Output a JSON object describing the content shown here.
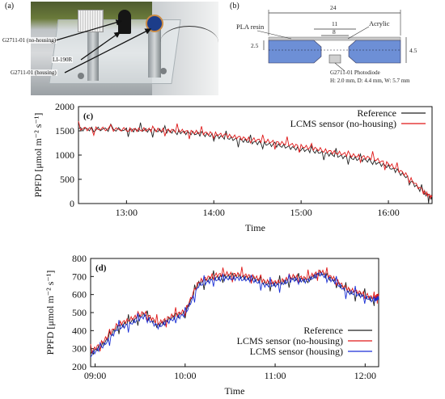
{
  "panel_a": {
    "label": "(a)",
    "annotations": [
      "G2711-01 (no-housing)",
      "LI-190R",
      "G2711-01 (housing)"
    ]
  },
  "panel_b": {
    "label": "(b)",
    "dim_total": "24",
    "dim_inner": "11",
    "dim_window": "8",
    "dim_left": "2.5",
    "dim_right": "4.5",
    "material_resin": "PLA resin",
    "material_cover": "Acrylic",
    "sensor_name": "G2711-01 Photodiode",
    "sensor_dims": "H: 2.0 mm, D: 4.4 mm, W: 5.7 mm",
    "colors": {
      "resin": "#6d8fd6",
      "cover": "#c9c9c9"
    }
  },
  "chart_data": [
    {
      "type": "line",
      "panel_label": "(c)",
      "xlabel": "Time",
      "ylabel": "PPFD [μmol m⁻² s⁻¹]",
      "ylim": [
        0,
        2000
      ],
      "yticks": [
        "0",
        "500",
        "1000",
        "1500",
        "2000"
      ],
      "xticks": [
        "13:00",
        "14:00",
        "15:00",
        "16:00"
      ],
      "xtick_hours": [
        13,
        14,
        15,
        16
      ],
      "xlim_hours": [
        12.45,
        16.5
      ],
      "legend": "top-right",
      "series": [
        {
          "name": "Reference",
          "color": "#222222",
          "x": [
            12.45,
            12.7,
            13.0,
            13.2,
            13.4,
            13.6,
            13.8,
            14.0,
            14.2,
            14.4,
            14.6,
            14.8,
            15.0,
            15.2,
            15.4,
            15.6,
            15.8,
            16.0,
            16.2,
            16.4,
            16.5
          ],
          "y": [
            1540,
            1535,
            1520,
            1515,
            1500,
            1480,
            1440,
            1400,
            1340,
            1280,
            1230,
            1180,
            1120,
            1060,
            990,
            930,
            880,
            760,
            560,
            220,
            120
          ]
        },
        {
          "name": "LCMS sensor (no-housing)",
          "color": "#e01818",
          "x": [
            12.45,
            12.7,
            13.0,
            13.2,
            13.4,
            13.6,
            13.8,
            14.0,
            14.2,
            14.4,
            14.6,
            14.8,
            15.0,
            15.2,
            15.4,
            15.6,
            15.8,
            16.0,
            16.2,
            16.4,
            16.5
          ],
          "y": [
            1545,
            1540,
            1525,
            1525,
            1515,
            1500,
            1470,
            1440,
            1385,
            1330,
            1290,
            1240,
            1180,
            1120,
            1050,
            990,
            940,
            820,
            600,
            240,
            130
          ]
        }
      ]
    },
    {
      "type": "line",
      "panel_label": "(d)",
      "xlabel": "Time",
      "ylabel": "PPFD [μmol m⁻² s⁻¹]",
      "ylim": [
        200,
        800
      ],
      "yticks": [
        "200",
        "300",
        "400",
        "500",
        "600",
        "700",
        "800"
      ],
      "xticks": [
        "09:00",
        "10:00",
        "11:00",
        "12:00"
      ],
      "xtick_hours": [
        9,
        10,
        11,
        12
      ],
      "xlim_hours": [
        8.95,
        12.15
      ],
      "legend": "bottom-right",
      "series": [
        {
          "name": "Reference",
          "color": "#222222",
          "x": [
            8.95,
            9.1,
            9.25,
            9.4,
            9.55,
            9.7,
            9.85,
            10.0,
            10.15,
            10.3,
            10.45,
            10.6,
            10.75,
            10.9,
            11.05,
            11.2,
            11.35,
            11.5,
            11.65,
            11.8,
            11.95,
            12.1,
            12.15
          ],
          "y": [
            270,
            330,
            420,
            450,
            490,
            430,
            470,
            500,
            660,
            690,
            700,
            700,
            690,
            660,
            660,
            690,
            680,
            720,
            680,
            620,
            600,
            570,
            590
          ]
        },
        {
          "name": "LCMS sensor (no-housing)",
          "color": "#e01818",
          "x": [
            8.95,
            9.1,
            9.25,
            9.4,
            9.55,
            9.7,
            9.85,
            10.0,
            10.15,
            10.3,
            10.45,
            10.6,
            10.75,
            10.9,
            11.05,
            11.2,
            11.35,
            11.5,
            11.65,
            11.8,
            11.95,
            12.1,
            12.15
          ],
          "y": [
            280,
            345,
            435,
            465,
            500,
            440,
            480,
            510,
            670,
            705,
            715,
            710,
            700,
            670,
            670,
            700,
            690,
            730,
            690,
            630,
            610,
            580,
            600
          ]
        },
        {
          "name": "LCMS sensor (housing)",
          "color": "#1a2fd6",
          "x": [
            8.95,
            9.1,
            9.25,
            9.4,
            9.55,
            9.7,
            9.85,
            10.0,
            10.15,
            10.3,
            10.45,
            10.6,
            10.75,
            10.9,
            11.05,
            11.2,
            11.35,
            11.5,
            11.65,
            11.8,
            11.95,
            12.1,
            12.15
          ],
          "y": [
            265,
            320,
            410,
            440,
            480,
            420,
            460,
            490,
            650,
            680,
            690,
            690,
            680,
            650,
            655,
            685,
            675,
            715,
            675,
            615,
            595,
            565,
            585
          ]
        }
      ]
    }
  ]
}
